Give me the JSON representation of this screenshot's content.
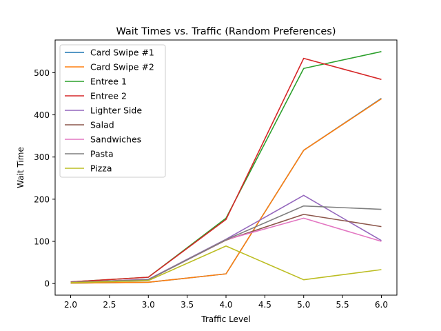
{
  "chart_data": {
    "type": "line",
    "title": "Wait Times vs. Traffic (Random Preferences)",
    "xlabel": "Traffic Level",
    "ylabel": "Wait Time",
    "xlim": [
      1.8,
      6.2
    ],
    "ylim": [
      -27.5,
      577.5
    ],
    "xticks": [
      "2.0",
      "2.5",
      "3.0",
      "3.5",
      "4.0",
      "4.5",
      "5.0",
      "5.5",
      "6.0"
    ],
    "yticks": [
      "0",
      "100",
      "200",
      "300",
      "400",
      "500"
    ],
    "grid": false,
    "legend_position": "upper left",
    "x": [
      2.0,
      3.0,
      4.0,
      5.0,
      6.0
    ],
    "series": [
      {
        "name": "Card Swipe #1",
        "color": "#1f77b4",
        "values": [
          1,
          3,
          23,
          316,
          439
        ]
      },
      {
        "name": "Card Swipe #2",
        "color": "#ff7f0e",
        "values": [
          1,
          3,
          23,
          316,
          438
        ]
      },
      {
        "name": "Entree 1",
        "color": "#2ca02c",
        "values": [
          4,
          15,
          155,
          510,
          550
        ]
      },
      {
        "name": "Entree 2",
        "color": "#d62728",
        "values": [
          4,
          15,
          152,
          534,
          484
        ]
      },
      {
        "name": "Lighter Side",
        "color": "#9467bd",
        "values": [
          3,
          10,
          105,
          209,
          102
        ]
      },
      {
        "name": "Salad",
        "color": "#8c564b",
        "values": [
          3,
          9,
          103,
          164,
          135
        ]
      },
      {
        "name": "Sandwiches",
        "color": "#e377c2",
        "values": [
          3,
          9,
          104,
          155,
          100
        ]
      },
      {
        "name": "Pasta",
        "color": "#7f7f7f",
        "values": [
          3,
          9,
          104,
          184,
          176
        ]
      },
      {
        "name": "Pizza",
        "color": "#bcbd22",
        "values": [
          2,
          7,
          89,
          9,
          33
        ]
      }
    ]
  }
}
